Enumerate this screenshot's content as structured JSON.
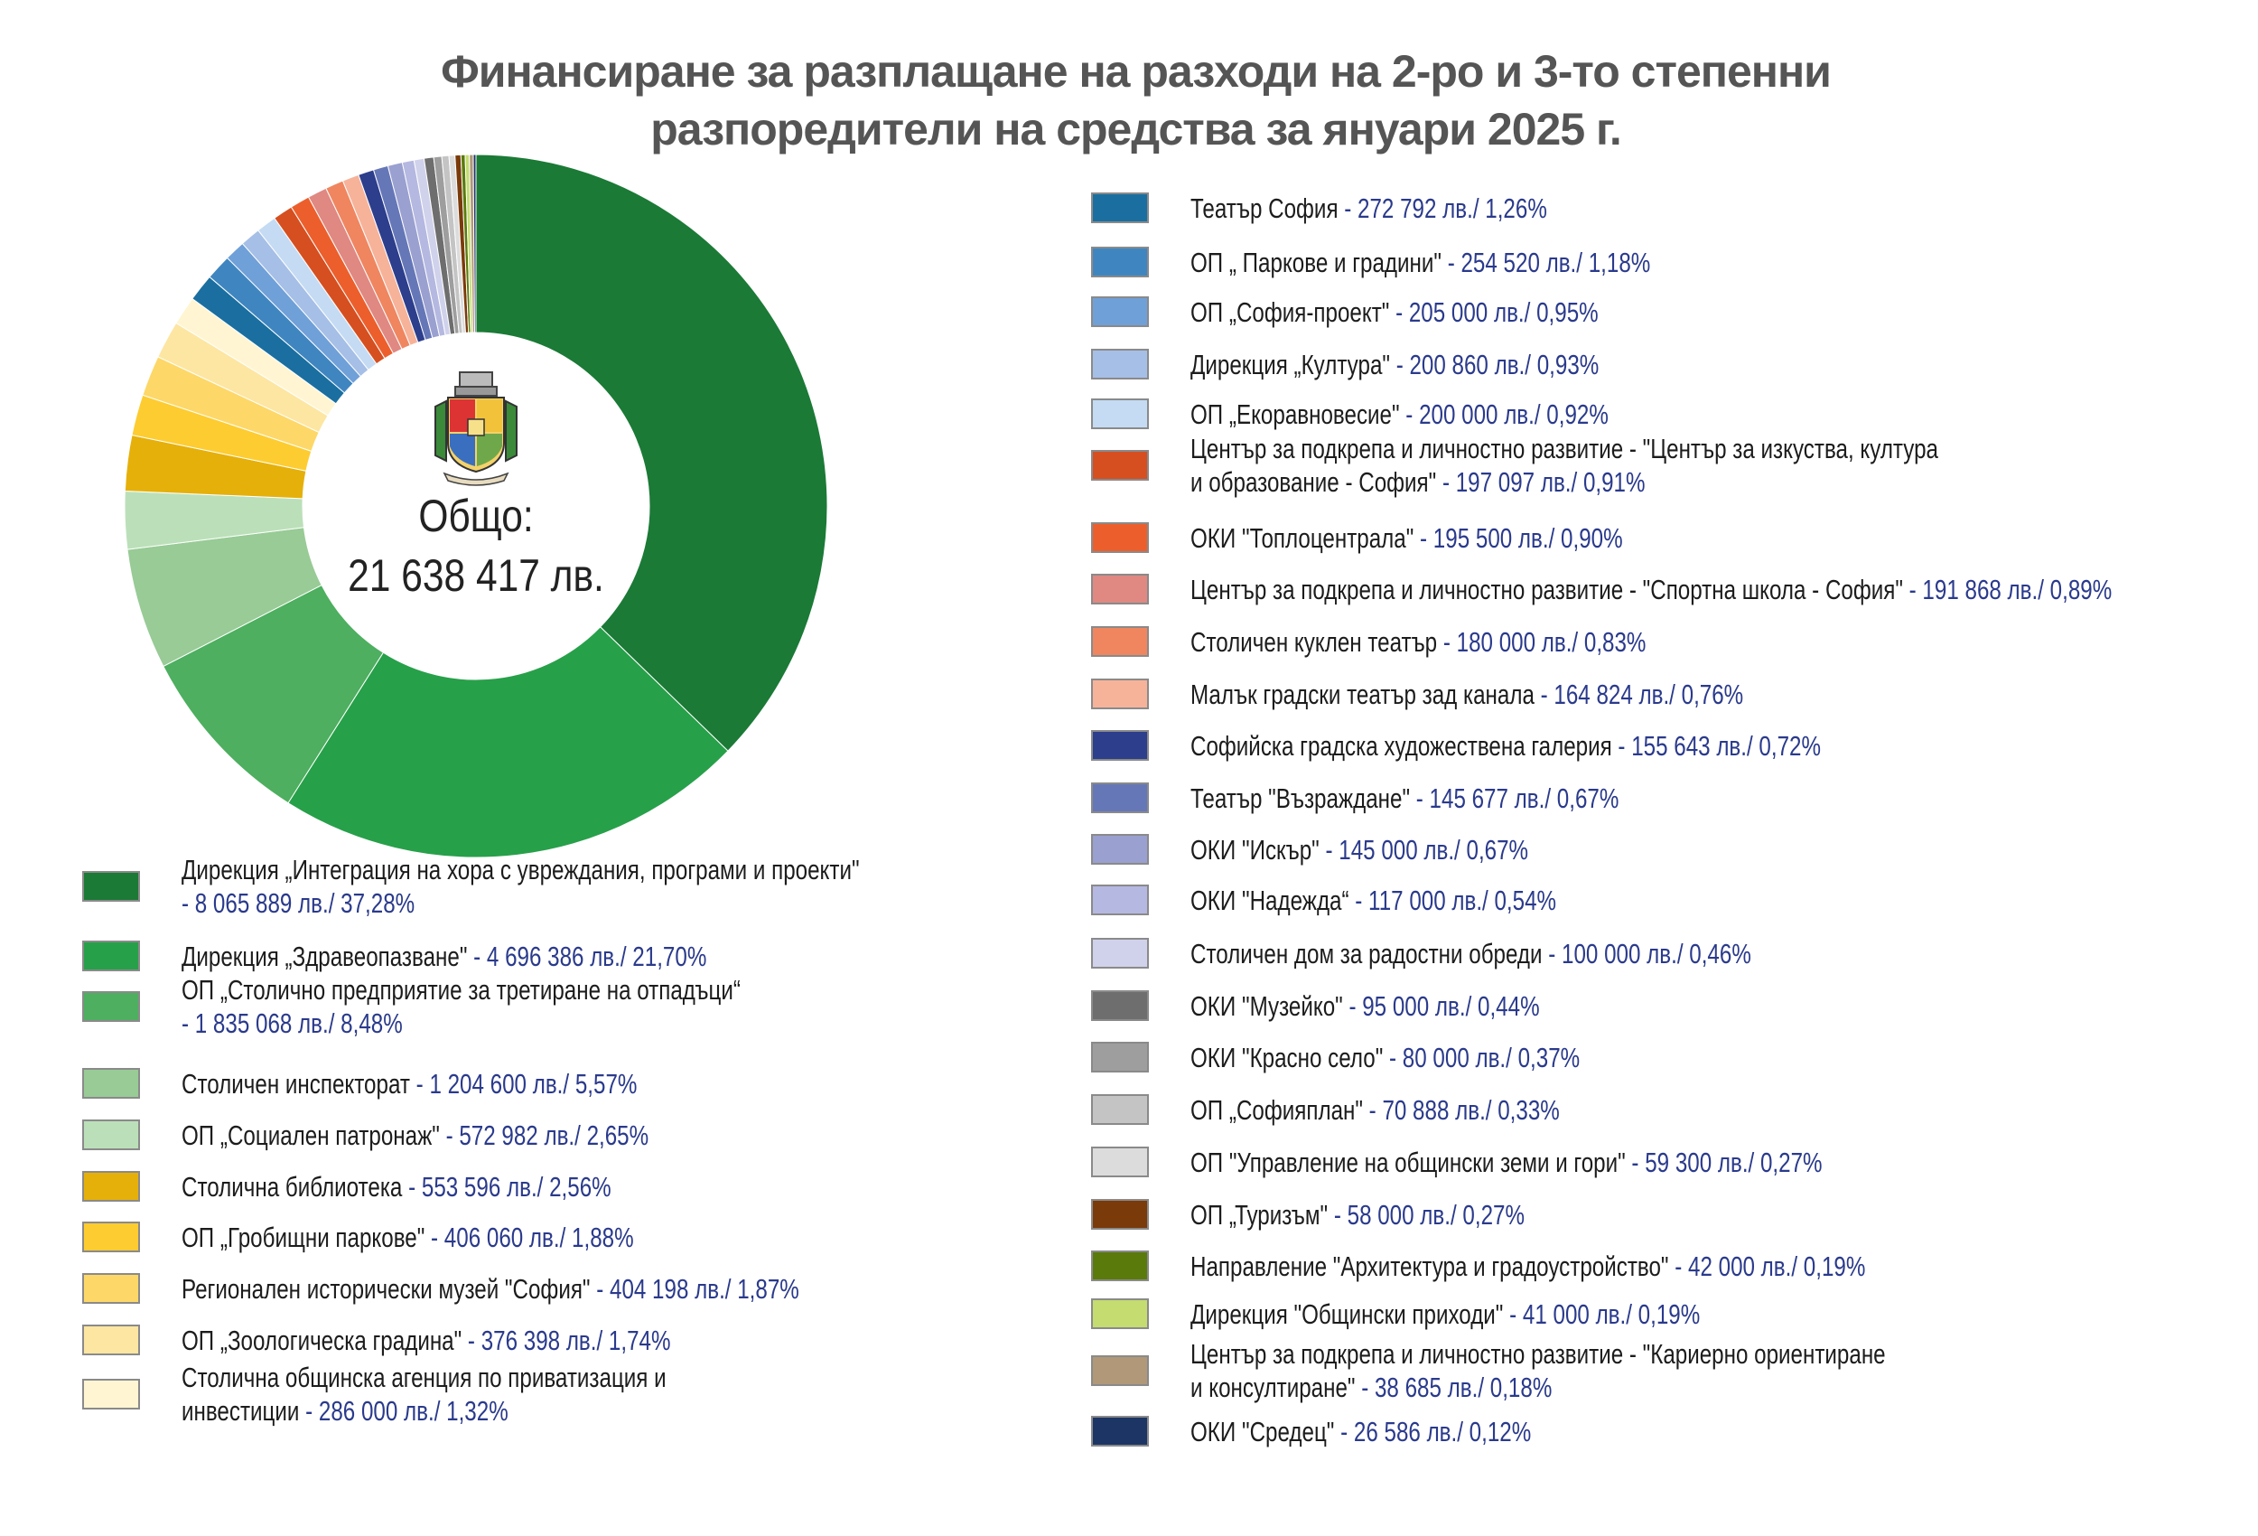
{
  "title": {
    "line1": "Финансиране за разплащане на разходи на 2-ро и 3-то степенни",
    "line2": "разпоредители на средства за януари 2025 г."
  },
  "center": {
    "label": "Общо:",
    "total": "21 638 417 лв."
  },
  "chart_data": {
    "type": "pie",
    "donut": true,
    "title": "Финансиране за разплащане на разходи на 2-ро и 3-то степенни разпоредители на средства за януари 2025 г.",
    "total": 21638417,
    "unit": "лв.",
    "legend_placement": "bottom-left and right",
    "items": [
      {
        "label": "Дирекция „Интеграция на хора с увреждания, програми и проекти\"",
        "amount": " - 8 065 889 лв./ 37,28%",
        "value": 8065889,
        "percent": 37.28,
        "color": "#1b7a36"
      },
      {
        "label": "Дирекция „Здравеопазване\"",
        "amount": " - 4 696 386 лв./ 21,70%",
        "value": 4696386,
        "percent": 21.7,
        "color": "#27a04a"
      },
      {
        "label": "ОП „Столично предприятие за третиране на отпадъци“",
        "amount": " - 1 835 068 лв./ 8,48%",
        "value": 1835068,
        "percent": 8.48,
        "color": "#4daf5f"
      },
      {
        "label": "Столичен инспекторат",
        "amount": " - 1 204 600 лв./ 5,57%",
        "value": 1204600,
        "percent": 5.57,
        "color": "#98cb96"
      },
      {
        "label": "ОП „Социален патронаж\"",
        "amount": " - 572 982 лв./ 2,65%",
        "value": 572982,
        "percent": 2.65,
        "color": "#bbe0b9"
      },
      {
        "label": "Столична библиотека",
        "amount": " - 553 596 лв./ 2,56%",
        "value": 553596,
        "percent": 2.56,
        "color": "#e5b00a"
      },
      {
        "label": "ОП „Гробищни паркове\"",
        "amount": " - 406 060 лв./ 1,88%",
        "value": 406060,
        "percent": 1.88,
        "color": "#fdcc30"
      },
      {
        "label": "Регионален исторически музей \"София\"",
        "amount": " - 404 198 лв./ 1,87%",
        "value": 404198,
        "percent": 1.87,
        "color": "#fdd868"
      },
      {
        "label": "ОП „Зоологическа градина\"",
        "amount": " - 376 398 лв./ 1,74%",
        "value": 376398,
        "percent": 1.74,
        "color": "#fde6a2"
      },
      {
        "label": "Столична общинска агенция по приватизация и инвестиции",
        "amount": " - 286 000 лв./ 1,32%",
        "value": 286000,
        "percent": 1.32,
        "color": "#fff5d2"
      },
      {
        "label": "Театър София",
        "amount": " - 272 792 лв./ 1,26%",
        "value": 272792,
        "percent": 1.26,
        "color": "#1a6fa0"
      },
      {
        "label": "ОП „ Паркове и градини\"",
        "amount": " - 254 520 лв./ 1,18%",
        "value": 254520,
        "percent": 1.18,
        "color": "#3f86c0"
      },
      {
        "label": "ОП „София-проект\"",
        "amount": " - 205 000 лв./ 0,95%",
        "value": 205000,
        "percent": 0.95,
        "color": "#70a0d8"
      },
      {
        "label": "Дирекция „Култура\"",
        "amount": " - 200 860 лв./ 0,93%",
        "value": 200860,
        "percent": 0.93,
        "color": "#a6bfe6"
      },
      {
        "label": "ОП „Екоравновесие\"",
        "amount": " - 200 000 лв./ 0,92%",
        "value": 200000,
        "percent": 0.92,
        "color": "#c4dbf3"
      },
      {
        "label": "Център за подкрепа и личностно развитие - \"Център за изкуства, култура и образование - София\"",
        "amount": " - 197 097 лв./ 0,91%",
        "value": 197097,
        "percent": 0.91,
        "color": "#d64f20"
      },
      {
        "label": "ОКИ \"Топлоцентрала\"",
        "amount": " - 195 500 лв./ 0,90%",
        "value": 195500,
        "percent": 0.9,
        "color": "#ec5f2c"
      },
      {
        "label": "Център за подкрепа и личностно развитие - \"Спортна школа - София\"",
        "amount": " - 191 868 лв./ 0,89%",
        "value": 191868,
        "percent": 0.89,
        "color": "#e08882"
      },
      {
        "label": "Столичен куклен театър",
        "amount": " - 180 000 лв./ 0,83%",
        "value": 180000,
        "percent": 0.83,
        "color": "#ef8660"
      },
      {
        "label": "Малък градски театър зад канала",
        "amount": " - 164 824 лв./ 0,76%",
        "value": 164824,
        "percent": 0.76,
        "color": "#f6b39a"
      },
      {
        "label": "Софийска градска художествена галерия",
        "amount": " - 155 643 лв./ 0,72%",
        "value": 155643,
        "percent": 0.72,
        "color": "#2c3e8c"
      },
      {
        "label": "Театър \"Възраждане\"",
        "amount": " - 145 677 лв./ 0,67%",
        "value": 145677,
        "percent": 0.67,
        "color": "#6677b8"
      },
      {
        "label": "ОКИ \"Искър\"",
        "amount": " - 145 000 лв./ 0,67%",
        "value": 145000,
        "percent": 0.67,
        "color": "#9aa0d0"
      },
      {
        "label": "ОКИ \"Надежда“",
        "amount": " - 117 000 лв./ 0,54%",
        "value": 117000,
        "percent": 0.54,
        "color": "#b5b8e0"
      },
      {
        "label": "Столичен дом за радостни обреди",
        "amount": " - 100 000 лв./ 0,46%",
        "value": 100000,
        "percent": 0.46,
        "color": "#d0d2ec"
      },
      {
        "label": "ОКИ \"Музейко\"",
        "amount": " - 95 000 лв./ 0,44%",
        "value": 95000,
        "percent": 0.44,
        "color": "#6e6e6e"
      },
      {
        "label": "ОКИ \"Красно село\"",
        "amount": " - 80 000 лв./ 0,37%",
        "value": 80000,
        "percent": 0.37,
        "color": "#9e9e9e"
      },
      {
        "label": "ОП „Софияплан\"",
        "amount": " - 70 888 лв./ 0,33%",
        "value": 70888,
        "percent": 0.33,
        "color": "#c4c4c4"
      },
      {
        "label": "ОП \"Управление на общински земи и гори\"",
        "amount": " - 59 300 лв./ 0,27%",
        "value": 59300,
        "percent": 0.27,
        "color": "#dcdcdc"
      },
      {
        "label": "ОП „Туризъм\"",
        "amount": " - 58 000 лв./ 0,27%",
        "value": 58000,
        "percent": 0.27,
        "color": "#7a3a0a"
      },
      {
        "label": "Направление \"Архитектура и градоустройство\"",
        "amount": " - 42 000 лв./ 0,19%",
        "value": 42000,
        "percent": 0.19,
        "color": "#5a7a0c"
      },
      {
        "label": "Дирекция \"Общински приходи\"",
        "amount": " - 41 000 лв./ 0,19%",
        "value": 41000,
        "percent": 0.19,
        "color": "#c4dc70"
      },
      {
        "label": "Център за подкрепа и личностно развитие - \"Кариерно ориентиране и консултиране\"",
        "amount": " - 38 685 лв./ 0,18%",
        "value": 38685,
        "percent": 0.18,
        "color": "#b09878"
      },
      {
        "label": "ОКИ \"Средец\"",
        "amount": " - 26 586 лв./ 0,12%",
        "value": 26586,
        "percent": 0.12,
        "color": "#1c3565"
      }
    ]
  }
}
